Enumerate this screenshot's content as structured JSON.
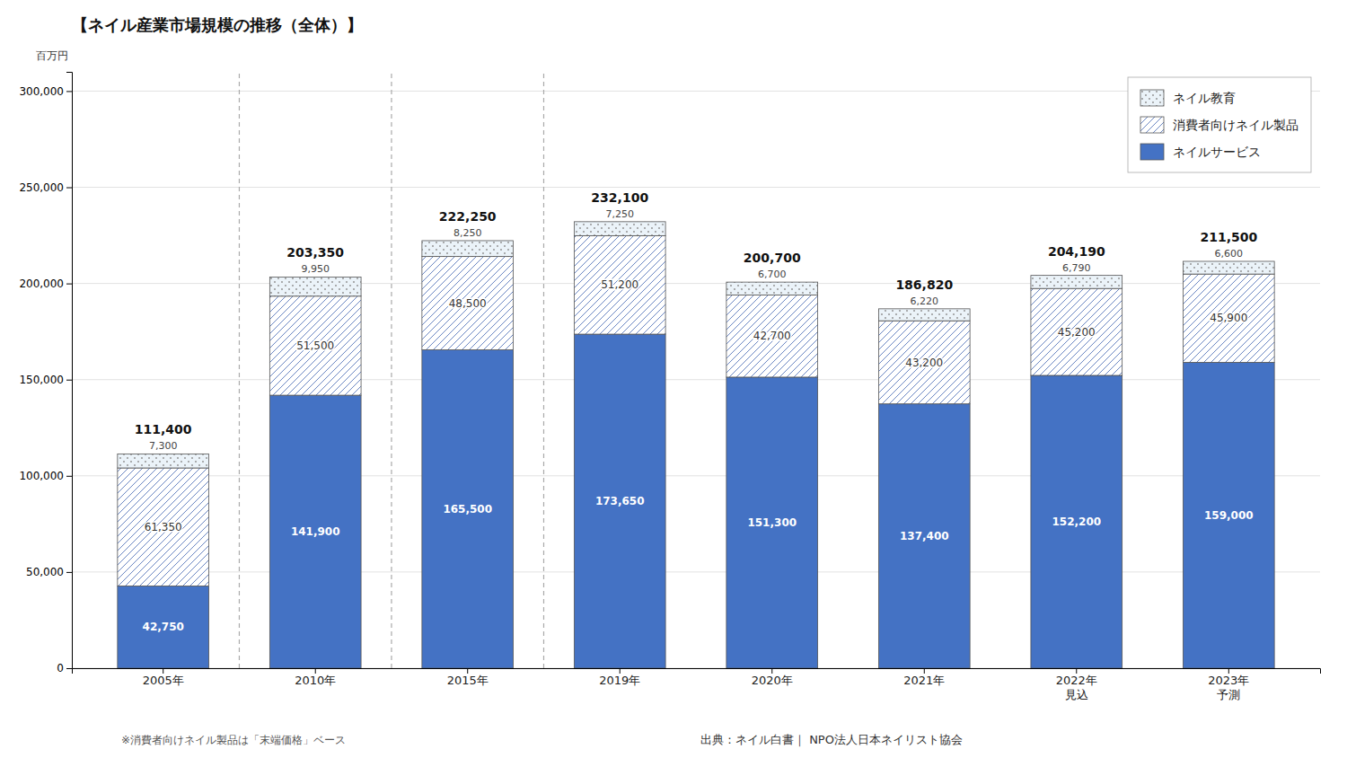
{
  "chart_data": {
    "type": "bar",
    "stacked": true,
    "title": "【ネイル産業市場規模の推移（全体）】",
    "ylabel": "百万円",
    "footnote": "※消費者向けネイル製品は「末端価格」ベース",
    "source": "出典：ネイル白書｜ NPO法人日本ネイリスト協会",
    "categories": [
      "2005年",
      "2010年",
      "2015年",
      "2019年",
      "2020年",
      "2021年",
      "2022年\n見込",
      "2023年\n予測"
    ],
    "series": [
      {
        "name": "ネイルサービス",
        "color": "#4472C4",
        "values": [
          42750,
          141900,
          165500,
          173650,
          151300,
          137400,
          152200,
          159000
        ],
        "value_labels": [
          "42,750",
          "141,900",
          "165,500",
          "173,650",
          "151,300",
          "137,400",
          "152,200",
          "159,000"
        ]
      },
      {
        "name": "消費者向けネイル製品",
        "color": "#FFFFFF",
        "values": [
          61350,
          51500,
          48500,
          51200,
          42700,
          43200,
          45200,
          45900
        ],
        "value_labels": [
          "61,350",
          "51,500",
          "48,500",
          "51,200",
          "42,700",
          "43,200",
          "45,200",
          "45,900"
        ]
      },
      {
        "name": "ネイル教育",
        "color": "#EBF3F9",
        "values": [
          7300,
          9950,
          8250,
          7250,
          6700,
          6220,
          6790,
          6600
        ],
        "value_labels": [
          "7,300",
          "9,950",
          "8,250",
          "7,250",
          "6,700",
          "6,220",
          "6,790",
          "6,600"
        ]
      }
    ],
    "totals": [
      111400,
      203350,
      222250,
      232100,
      200700,
      186820,
      204190,
      211500
    ],
    "total_labels": [
      "111,400",
      "203,350",
      "222,250",
      "232,100",
      "200,700",
      "186,820",
      "204,190",
      "211,500"
    ],
    "ylim": [
      0,
      310000
    ],
    "yticks": [
      0,
      {
        "value": 50000,
        "label": "50,000"
      },
      {
        "value": 100000,
        "label": "100,000"
      },
      {
        "value": 150000,
        "label": "150,000"
      },
      {
        "value": 200000,
        "label": "200,000"
      },
      {
        "value": 250000,
        "label": "250,000"
      },
      {
        "value": 300000,
        "label": "300,000"
      }
    ],
    "grid": true,
    "legend": "upper right",
    "data_labels": true
  }
}
